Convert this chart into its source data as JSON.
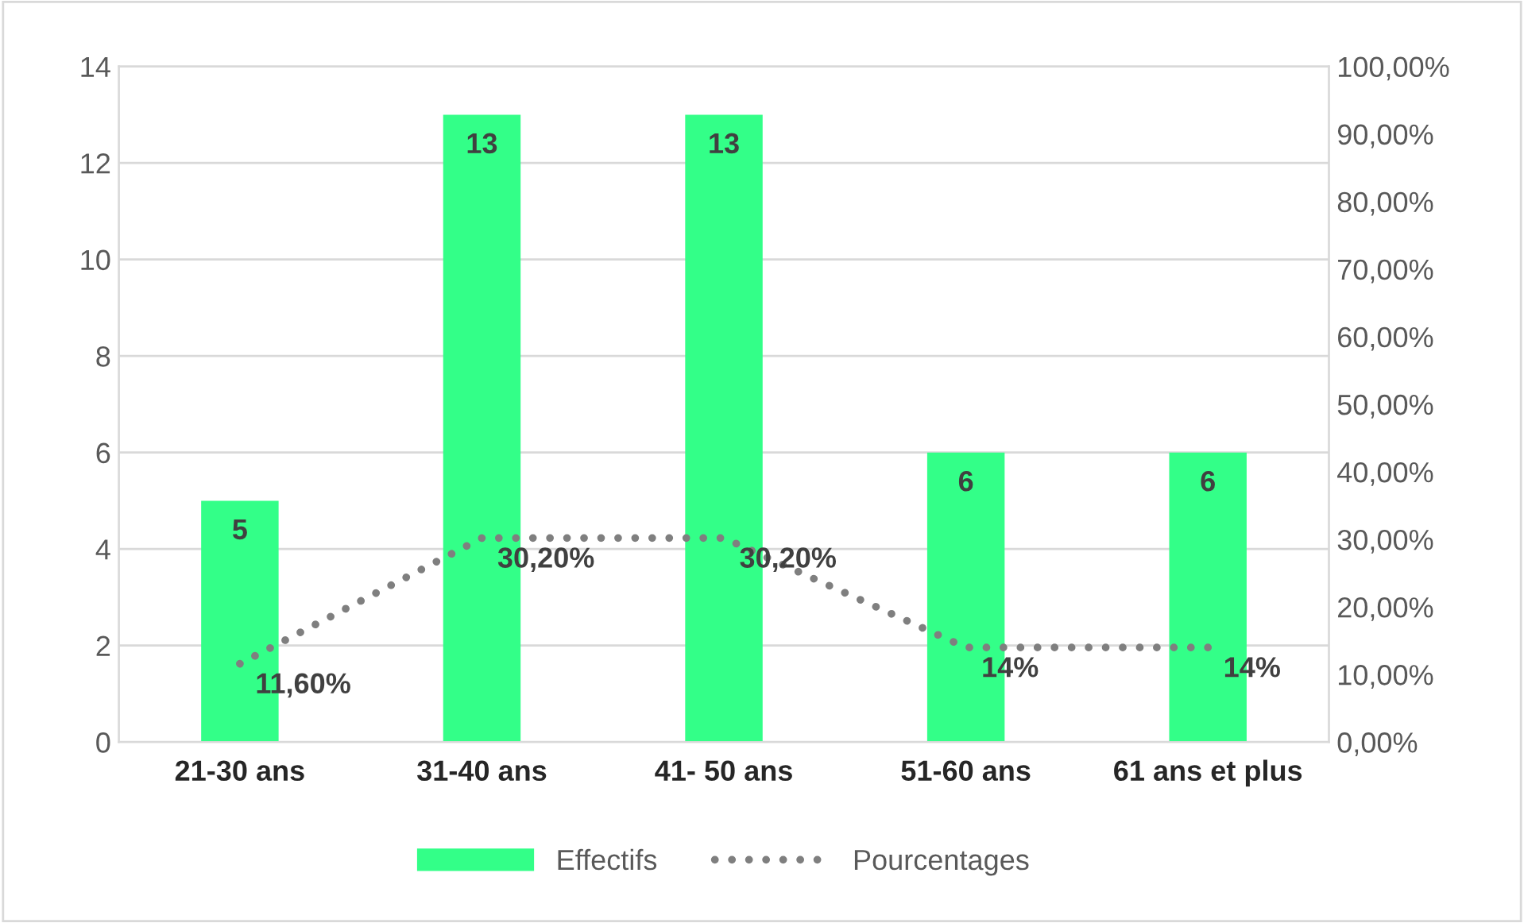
{
  "chart_data": {
    "type": "bar",
    "categories": [
      "21-30 ans",
      "31-40 ans",
      "41- 50 ans",
      "51-60 ans",
      "61 ans et plus"
    ],
    "series": [
      {
        "name": "Effectifs",
        "color": "#33ff88",
        "values": [
          5,
          13,
          13,
          6,
          6
        ],
        "value_labels": [
          "5",
          "13",
          "13",
          "6",
          "6"
        ]
      },
      {
        "name": "Pourcentages",
        "type": "line",
        "axis": "y2",
        "color": "#7f7f7f",
        "line_style": "dotted",
        "marker": "none",
        "values": [
          11.6,
          30.2,
          30.2,
          14,
          14
        ],
        "value_labels": [
          "11,60%",
          "30,20%",
          "30,20%",
          "14%",
          "14%"
        ]
      }
    ],
    "ylim": [
      0,
      14
    ],
    "yticks": [
      0,
      2,
      4,
      6,
      8,
      10,
      12,
      14
    ],
    "y2lim": [
      0,
      100
    ],
    "y2ticks": [
      {
        "value": 0,
        "label": "0,00%"
      },
      {
        "value": 10,
        "label": "10,00%"
      },
      {
        "value": 20,
        "label": "20,00%"
      },
      {
        "value": 30,
        "label": "30,00%"
      },
      {
        "value": 40,
        "label": "40,00%"
      },
      {
        "value": 50,
        "label": "50,00%"
      },
      {
        "value": 60,
        "label": "60,00%"
      },
      {
        "value": 70,
        "label": "70,00%"
      },
      {
        "value": 80,
        "label": "80,00%"
      },
      {
        "value": 90,
        "label": "90,00%"
      },
      {
        "value": 100,
        "label": "100,00%"
      }
    ],
    "grid": "y",
    "legend": "bottom"
  }
}
